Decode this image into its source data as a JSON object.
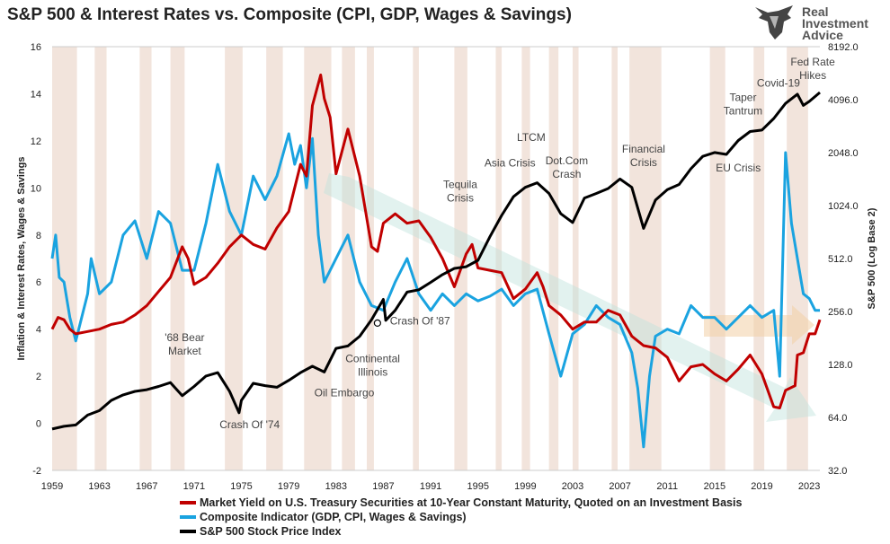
{
  "header": {
    "title": "S&P 500 & Interest Rates vs. Composite (CPI, GDP, Wages & Savings)"
  },
  "logo": {
    "line1": "Real",
    "line2": "Investment",
    "line3": "Advice",
    "icon": "bull-head-icon"
  },
  "chart_data": {
    "type": "line",
    "title": "S&P 500 & Interest Rates vs. Composite (CPI, GDP, Wages & Savings)",
    "ylabel": "Inflation & Interest Rates, Wages & Savings",
    "y2label": "S&P 500 (Log Base 2)",
    "ylim": [
      -2,
      16
    ],
    "y2lim": [
      32,
      8192
    ],
    "y2scale": "log2",
    "xlim": [
      1959,
      2023.9
    ],
    "x_ticks": [
      "1959",
      "1963",
      "1967",
      "1971",
      "1975",
      "1979",
      "1983",
      "1987",
      "1991",
      "1995",
      "1999",
      "2003",
      "2007",
      "2011",
      "2015",
      "2019",
      "2023"
    ],
    "y_ticks": [
      "-2",
      "0",
      "2",
      "4",
      "6",
      "8",
      "10",
      "12",
      "14",
      "16"
    ],
    "y2_ticks": [
      "32.0",
      "64.0",
      "128.0",
      "256.0",
      "512.0",
      "1024.0",
      "2048.0",
      "4096.0",
      "8192.0"
    ],
    "grid": false,
    "legend_position": "bottom",
    "colors": {
      "rate": "#c00000",
      "composite": "#1aa3e0",
      "sp500": "#000000",
      "shade": "#f2e4dc"
    },
    "series": [
      {
        "name": "Market Yield on U.S. Treasury Securities at 10-Year Constant Maturity, Quoted on an Investment Basis",
        "axis": "left",
        "points": [
          [
            1959,
            4.0
          ],
          [
            1959.5,
            4.5
          ],
          [
            1960,
            4.4
          ],
          [
            1960.5,
            4.0
          ],
          [
            1961,
            3.8
          ],
          [
            1962,
            3.9
          ],
          [
            1963,
            4.0
          ],
          [
            1964,
            4.2
          ],
          [
            1965,
            4.3
          ],
          [
            1966,
            4.6
          ],
          [
            1967,
            5.0
          ],
          [
            1968,
            5.6
          ],
          [
            1969,
            6.2
          ],
          [
            1970,
            7.5
          ],
          [
            1970.5,
            7.0
          ],
          [
            1971,
            5.9
          ],
          [
            1972,
            6.2
          ],
          [
            1973,
            6.8
          ],
          [
            1974,
            7.5
          ],
          [
            1975,
            8.0
          ],
          [
            1976,
            7.6
          ],
          [
            1977,
            7.4
          ],
          [
            1978,
            8.3
          ],
          [
            1979,
            9.0
          ],
          [
            1980,
            11.0
          ],
          [
            1980.5,
            10.5
          ],
          [
            1981,
            13.5
          ],
          [
            1981.7,
            14.8
          ],
          [
            1982,
            13.8
          ],
          [
            1982.5,
            13.0
          ],
          [
            1983,
            10.6
          ],
          [
            1984,
            12.5
          ],
          [
            1985,
            10.5
          ],
          [
            1986,
            7.5
          ],
          [
            1986.5,
            7.3
          ],
          [
            1987,
            8.5
          ],
          [
            1988,
            8.9
          ],
          [
            1989,
            8.5
          ],
          [
            1990,
            8.6
          ],
          [
            1991,
            7.9
          ],
          [
            1992,
            7.0
          ],
          [
            1993,
            5.8
          ],
          [
            1994,
            7.2
          ],
          [
            1994.5,
            7.6
          ],
          [
            1995,
            6.6
          ],
          [
            1996,
            6.5
          ],
          [
            1997,
            6.4
          ],
          [
            1998,
            5.3
          ],
          [
            1999,
            5.7
          ],
          [
            2000,
            6.4
          ],
          [
            2000.5,
            5.8
          ],
          [
            2001,
            5.0
          ],
          [
            2002,
            4.6
          ],
          [
            2003,
            4.0
          ],
          [
            2004,
            4.3
          ],
          [
            2005,
            4.3
          ],
          [
            2006,
            4.8
          ],
          [
            2007,
            4.6
          ],
          [
            2008,
            3.7
          ],
          [
            2009,
            3.3
          ],
          [
            2010,
            3.2
          ],
          [
            2011,
            2.8
          ],
          [
            2012,
            1.8
          ],
          [
            2013,
            2.4
          ],
          [
            2014,
            2.5
          ],
          [
            2015,
            2.1
          ],
          [
            2016,
            1.8
          ],
          [
            2017,
            2.3
          ],
          [
            2018,
            2.9
          ],
          [
            2019,
            2.1
          ],
          [
            2020,
            0.7
          ],
          [
            2020.5,
            0.65
          ],
          [
            2021,
            1.4
          ],
          [
            2021.8,
            1.6
          ],
          [
            2022,
            2.9
          ],
          [
            2022.5,
            3.0
          ],
          [
            2023,
            3.8
          ],
          [
            2023.5,
            3.8
          ],
          [
            2023.9,
            4.4
          ]
        ]
      },
      {
        "name": "Composite Indicator (GDP, CPI, Wages & Savings)",
        "axis": "left",
        "points": [
          [
            1959,
            7.0
          ],
          [
            1959.3,
            8.0
          ],
          [
            1959.6,
            6.2
          ],
          [
            1960,
            6.0
          ],
          [
            1960.5,
            4.5
          ],
          [
            1961,
            3.5
          ],
          [
            1962,
            5.5
          ],
          [
            1962.3,
            7.0
          ],
          [
            1963,
            5.5
          ],
          [
            1964,
            6.0
          ],
          [
            1965,
            8.0
          ],
          [
            1966,
            8.6
          ],
          [
            1967,
            7.0
          ],
          [
            1968,
            9.0
          ],
          [
            1969,
            8.5
          ],
          [
            1970,
            6.5
          ],
          [
            1971,
            6.5
          ],
          [
            1972,
            8.5
          ],
          [
            1973,
            11.0
          ],
          [
            1974,
            9.0
          ],
          [
            1975,
            8.0
          ],
          [
            1976,
            10.5
          ],
          [
            1977,
            9.5
          ],
          [
            1978,
            10.5
          ],
          [
            1979,
            12.3
          ],
          [
            1979.5,
            11.0
          ],
          [
            1980,
            11.8
          ],
          [
            1980.5,
            10.0
          ],
          [
            1981,
            12.1
          ],
          [
            1981.5,
            8.0
          ],
          [
            1982,
            6.0
          ],
          [
            1983,
            7.0
          ],
          [
            1984,
            8.0
          ],
          [
            1985,
            6.0
          ],
          [
            1986,
            5.0
          ],
          [
            1987,
            4.8
          ],
          [
            1988,
            6.0
          ],
          [
            1989,
            7.0
          ],
          [
            1990,
            5.5
          ],
          [
            1991,
            4.8
          ],
          [
            1992,
            5.5
          ],
          [
            1993,
            5.0
          ],
          [
            1994,
            5.5
          ],
          [
            1995,
            5.2
          ],
          [
            1996,
            5.4
          ],
          [
            1997,
            5.7
          ],
          [
            1998,
            5.0
          ],
          [
            1999,
            5.5
          ],
          [
            2000,
            5.7
          ],
          [
            2001,
            3.8
          ],
          [
            2002,
            2.0
          ],
          [
            2003,
            3.8
          ],
          [
            2004,
            4.2
          ],
          [
            2005,
            5.0
          ],
          [
            2006,
            4.5
          ],
          [
            2007,
            4.2
          ],
          [
            2008,
            3.0
          ],
          [
            2008.5,
            1.5
          ],
          [
            2009,
            -1.0
          ],
          [
            2009.5,
            2.0
          ],
          [
            2010,
            3.7
          ],
          [
            2011,
            4.0
          ],
          [
            2012,
            3.8
          ],
          [
            2013,
            5.0
          ],
          [
            2014,
            4.5
          ],
          [
            2015,
            4.5
          ],
          [
            2016,
            4.0
          ],
          [
            2017,
            4.5
          ],
          [
            2018,
            5.0
          ],
          [
            2019,
            4.5
          ],
          [
            2020,
            4.8
          ],
          [
            2020.5,
            2.0
          ],
          [
            2021,
            11.5
          ],
          [
            2021.5,
            8.5
          ],
          [
            2022,
            7.0
          ],
          [
            2022.5,
            5.5
          ],
          [
            2023,
            5.3
          ],
          [
            2023.5,
            4.8
          ],
          [
            2023.9,
            4.8
          ]
        ]
      },
      {
        "name": "S&P 500 Stock Price Index",
        "axis": "right",
        "points": [
          [
            1959,
            55
          ],
          [
            1960,
            57
          ],
          [
            1961,
            58
          ],
          [
            1962,
            66
          ],
          [
            1963,
            70
          ],
          [
            1964,
            80
          ],
          [
            1965,
            86
          ],
          [
            1966,
            90
          ],
          [
            1967,
            92
          ],
          [
            1968,
            96
          ],
          [
            1969,
            101
          ],
          [
            1970,
            85
          ],
          [
            1971,
            96
          ],
          [
            1972,
            110
          ],
          [
            1973,
            115
          ],
          [
            1974,
            90
          ],
          [
            1974.8,
            68
          ],
          [
            1975,
            80
          ],
          [
            1976,
            100
          ],
          [
            1977,
            97
          ],
          [
            1978,
            95
          ],
          [
            1979,
            104
          ],
          [
            1980,
            115
          ],
          [
            1981,
            125
          ],
          [
            1982,
            116
          ],
          [
            1983,
            158
          ],
          [
            1984,
            163
          ],
          [
            1985,
            185
          ],
          [
            1986,
            230
          ],
          [
            1987,
            300
          ],
          [
            1987.2,
            228
          ],
          [
            1988,
            260
          ],
          [
            1989,
            330
          ],
          [
            1990,
            340
          ],
          [
            1991,
            375
          ],
          [
            1992,
            415
          ],
          [
            1993,
            450
          ],
          [
            1994,
            460
          ],
          [
            1995,
            500
          ],
          [
            1996,
            680
          ],
          [
            1997,
            900
          ],
          [
            1998,
            1150
          ],
          [
            1999,
            1300
          ],
          [
            2000,
            1380
          ],
          [
            2001,
            1200
          ],
          [
            2002,
            920
          ],
          [
            2003,
            820
          ],
          [
            2004,
            1130
          ],
          [
            2005,
            1200
          ],
          [
            2006,
            1280
          ],
          [
            2007,
            1450
          ],
          [
            2008,
            1300
          ],
          [
            2009,
            760
          ],
          [
            2010,
            1100
          ],
          [
            2011,
            1260
          ],
          [
            2012,
            1350
          ],
          [
            2013,
            1660
          ],
          [
            2014,
            1950
          ],
          [
            2015,
            2050
          ],
          [
            2016,
            2000
          ],
          [
            2017,
            2400
          ],
          [
            2018,
            2700
          ],
          [
            2019,
            2750
          ],
          [
            2020,
            3200
          ],
          [
            2021,
            3900
          ],
          [
            2022,
            4400
          ],
          [
            2022.5,
            3800
          ],
          [
            2023,
            4000
          ],
          [
            2023.9,
            4500
          ]
        ]
      }
    ],
    "recession_shading": [
      [
        1959.0,
        1961.1
      ],
      [
        1962.6,
        1963.6
      ],
      [
        1966.4,
        1967.4
      ],
      [
        1969.0,
        1970.2
      ],
      [
        1973.6,
        1975.1
      ],
      [
        1977.1,
        1978.5
      ],
      [
        1980.3,
        1982.6
      ],
      [
        1983.5,
        1984.6
      ],
      [
        1985.6,
        1986.2
      ],
      [
        1989.5,
        1990.0
      ],
      [
        1993.0,
        1994.1
      ],
      [
        1996.5,
        1997.0
      ],
      [
        1998.7,
        1999.4
      ],
      [
        2001.0,
        2001.8
      ],
      [
        2003.0,
        2003.5
      ],
      [
        2006.3,
        2006.8
      ],
      [
        2007.8,
        2010.5
      ],
      [
        2014.6,
        2015.9
      ],
      [
        2018.3,
        2019.2
      ],
      [
        2021.1,
        2022.9
      ]
    ],
    "annotations": [
      {
        "text_lines": [
          "'68 Bear",
          "Market"
        ],
        "x": 1970.2,
        "y": 3.5
      },
      {
        "text_lines": [
          "Crash Of '74"
        ],
        "x": 1975.7,
        "y": -0.2
      },
      {
        "text_lines": [
          "Oil Embargo"
        ],
        "x": 1983.7,
        "y": 1.15
      },
      {
        "text_lines": [
          "Continental",
          "Illinois"
        ],
        "x": 1986.1,
        "y": 2.6
      },
      {
        "text_lines": [
          "Crash Of '87"
        ],
        "x": 1990.1,
        "y": 4.2
      },
      {
        "text_lines": [
          "Tequila",
          "Crisis"
        ],
        "x": 1993.5,
        "y": 10.0
      },
      {
        "text_lines": [
          "Asia Crisis"
        ],
        "x": 1997.7,
        "y": 10.9
      },
      {
        "text_lines": [
          "LTCM"
        ],
        "x": 1999.5,
        "y": 12.0
      },
      {
        "text_lines": [
          "Dot.Com",
          "Crash"
        ],
        "x": 2002.5,
        "y": 11.0
      },
      {
        "text_lines": [
          "Financial",
          "Crisis"
        ],
        "x": 2009.0,
        "y": 11.5
      },
      {
        "text_lines": [
          "EU Crisis"
        ],
        "x": 2017.0,
        "y": 10.7
      },
      {
        "text_lines": [
          "Taper",
          "Tantrum"
        ],
        "x": 2017.4,
        "y": 13.7
      },
      {
        "text_lines": [
          "Covid-19"
        ],
        "x": 2020.4,
        "y": 14.3
      },
      {
        "text_lines": [
          "Fed Rate",
          "Hikes"
        ],
        "x": 2023.3,
        "y": 15.2
      }
    ],
    "markers": [
      {
        "series": "S&P 500 Stock Price Index",
        "x": 1986.5,
        "y2": 220
      }
    ]
  },
  "legend": {
    "items": [
      {
        "label": "Market Yield on U.S. Treasury Securities at 10-Year Constant Maturity, Quoted on an Investment Basis",
        "color": "#c00000"
      },
      {
        "label": "Composite Indicator (GDP, CPI, Wages & Savings)",
        "color": "#1aa3e0"
      },
      {
        "label": "S&P 500 Stock Price Index",
        "color": "#000000"
      }
    ]
  }
}
